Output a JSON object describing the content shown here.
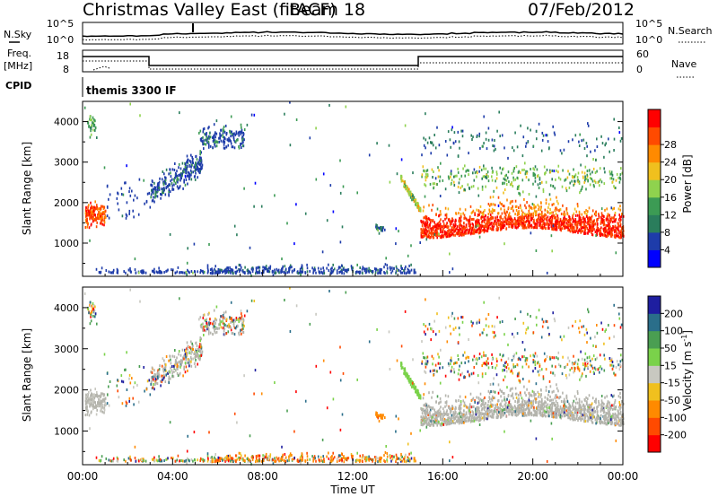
{
  "header": {
    "title": "Christmas Valley East (fitACF)",
    "beam": "Beam 18",
    "date": "07/Feb/2012"
  },
  "mini_panels": {
    "nsky_label": "N.Sky",
    "nsky_left_ticks": [
      "10^5",
      "10^0"
    ],
    "nsky_right_ticks": [
      "10^5",
      "10^0"
    ],
    "nsearch_label": "N.Search",
    "freq_label": "Freq.",
    "freq_unit": "[MHz]",
    "freq_ticks": [
      "18",
      "8"
    ],
    "nave_ticks": [
      "60",
      "0"
    ],
    "nave_label": "Nave",
    "cpid_label": "CPID",
    "cpid_value": "themis 3300 IF"
  },
  "colors": {
    "power_scale": [
      "#0000ff",
      "#1e3caa",
      "#2a7d5c",
      "#3c9b54",
      "#8fd24e",
      "#f0c01e",
      "#ff8a00",
      "#ff4a00",
      "#ff0000"
    ],
    "velocity_scale": [
      "#1e1ea0",
      "#2a6e8a",
      "#4a9e52",
      "#7ad24a",
      "#c8c8c0",
      "#f0c01e",
      "#ff8a00",
      "#ff4a00",
      "#ff0000"
    ],
    "grey_scatter": "#b4b4ac"
  },
  "chart_data": [
    {
      "type": "heatmap",
      "name": "power",
      "xlabel": "",
      "ylabel": "Slant Range [km]",
      "ylim": [
        180,
        4500
      ],
      "xlim": [
        0,
        24
      ],
      "yticks": [
        "1000",
        "2000",
        "3000",
        "4000"
      ],
      "colorbar_label": "Power [dB]",
      "colorbar_ticks": [
        "4",
        "8",
        "12",
        "16",
        "20",
        "24",
        "28"
      ],
      "colorbar_range": [
        0,
        30
      ]
    },
    {
      "type": "heatmap",
      "name": "velocity",
      "xlabel": "Time UT",
      "ylabel": "Slant Range [km]",
      "ylim": [
        180,
        4500
      ],
      "xlim": [
        0,
        24
      ],
      "yticks": [
        "1000",
        "2000",
        "3000",
        "4000"
      ],
      "xticks": [
        "00:00",
        "04:00",
        "08:00",
        "12:00",
        "16:00",
        "20:00",
        "00:00"
      ],
      "colorbar_label": "Velocity [m s^-1]",
      "colorbar_ticks": [
        "200",
        "100",
        "50",
        "15",
        "-15",
        "-50",
        "-100",
        "-200"
      ],
      "colorbar_range": [
        -250,
        250
      ]
    }
  ]
}
